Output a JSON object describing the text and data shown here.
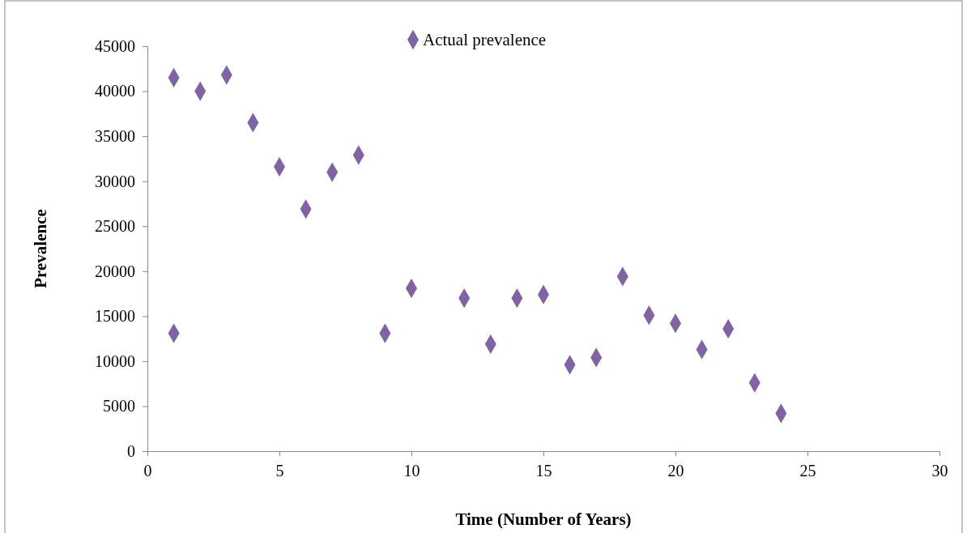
{
  "chart_data": {
    "type": "scatter",
    "xlabel": "Time (Number of Years)",
    "ylabel": "Prevalence",
    "x": [
      1,
      1,
      2,
      3,
      4,
      5,
      6,
      7,
      8,
      9,
      10,
      12,
      13,
      14,
      15,
      16,
      17,
      18,
      19,
      20,
      21,
      22,
      23,
      24
    ],
    "series": [
      {
        "name": "Actual prevalence",
        "color": "#8064a2",
        "values": [
          41500,
          13100,
          40000,
          41800,
          36500,
          31600,
          26900,
          31000,
          32900,
          13100,
          18100,
          17000,
          11900,
          17000,
          17400,
          9600,
          10400,
          19400,
          15100,
          14200,
          11300,
          13600,
          7600,
          4200
        ]
      }
    ],
    "xlim": [
      0,
      30
    ],
    "xticks": [
      0,
      5,
      10,
      15,
      20,
      25,
      30
    ],
    "ylim": [
      0,
      45000
    ],
    "yticks": [
      0,
      5000,
      10000,
      15000,
      20000,
      25000,
      30000,
      35000,
      40000,
      45000
    ],
    "grid": false,
    "legend": "top",
    "marker": "diamond"
  }
}
